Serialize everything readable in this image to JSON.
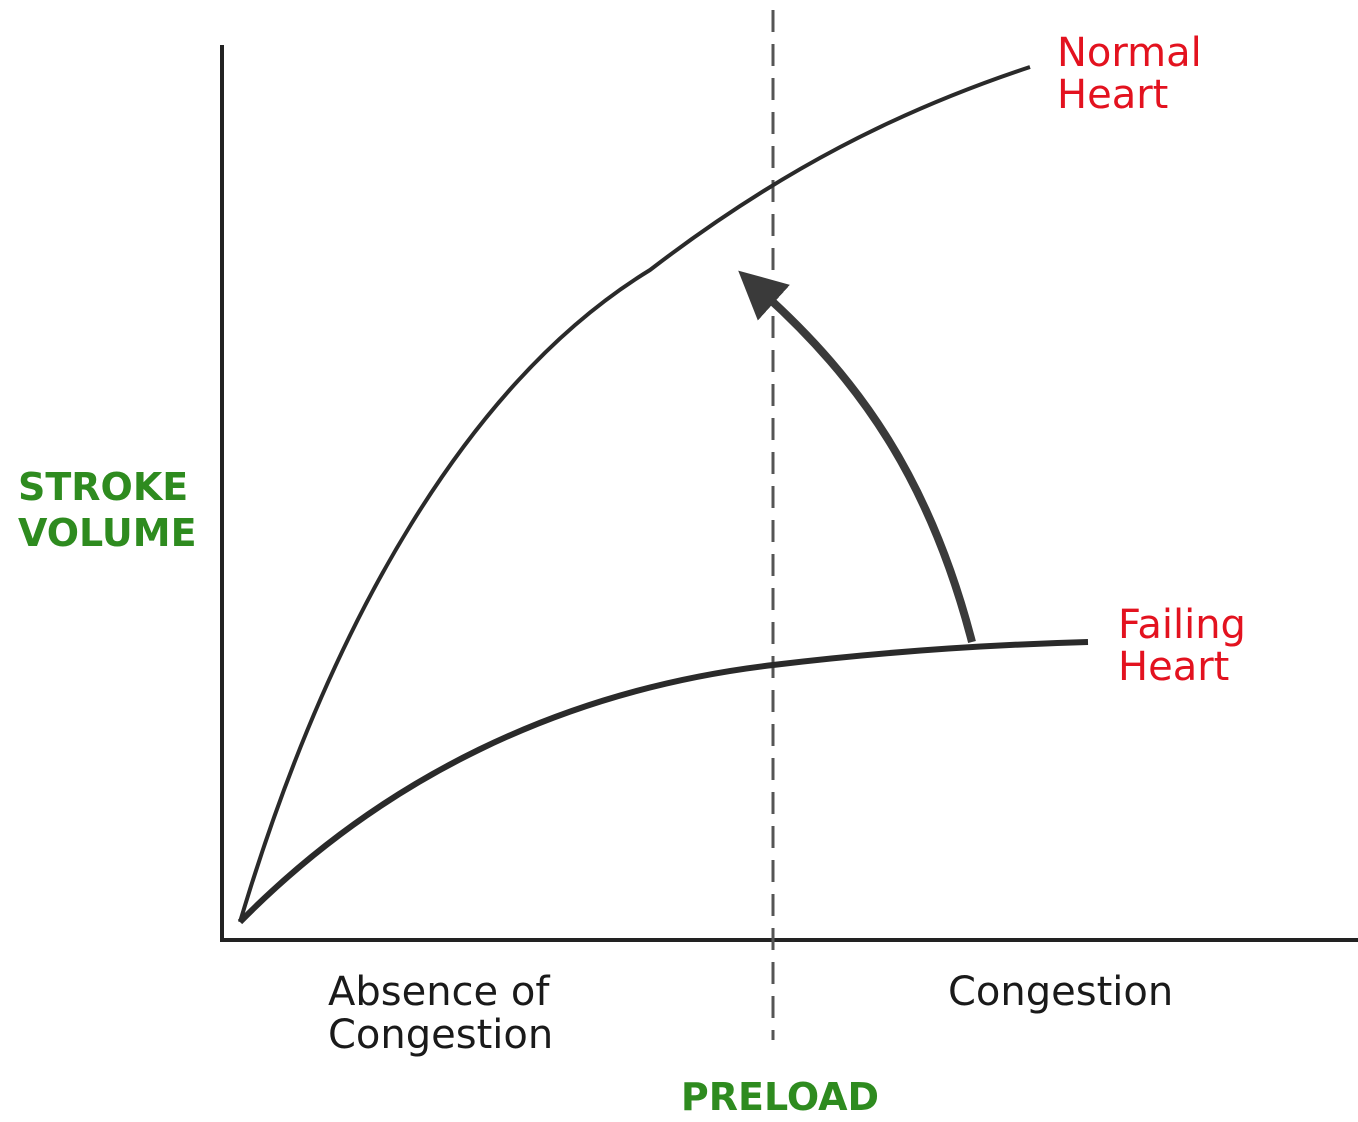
{
  "axes": {
    "y_label": [
      "STROKE",
      "VOLUME"
    ],
    "x_label": "PRELOAD"
  },
  "regions": [
    {
      "label": [
        "Absence of",
        "Congestion"
      ]
    },
    {
      "label": [
        "Congestion"
      ]
    }
  ],
  "curves": [
    {
      "label": [
        "Normal",
        "Heart"
      ]
    },
    {
      "label": [
        "Failing",
        "Heart"
      ]
    }
  ]
}
